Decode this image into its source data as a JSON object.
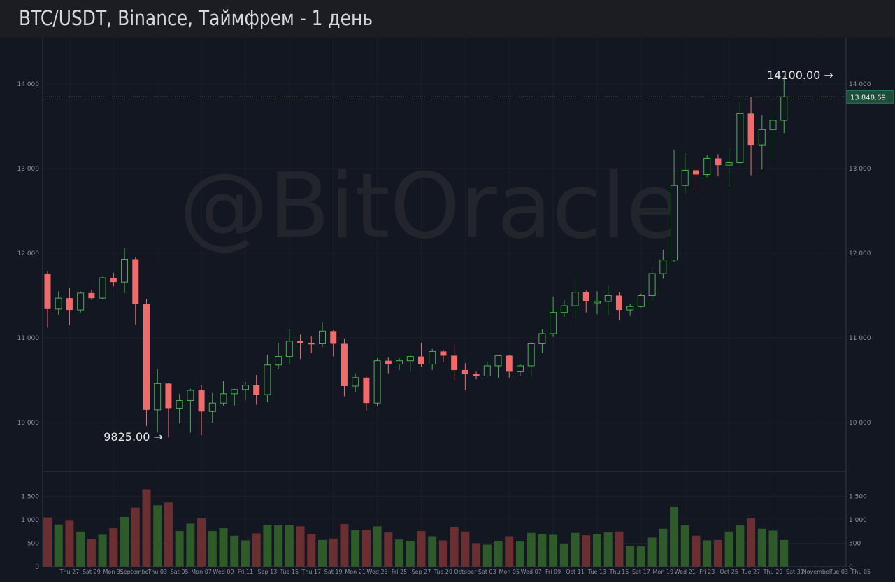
{
  "header": {
    "title": "BTC/USDT, Binance, Таймфрем - 1 день"
  },
  "watermark": "@BitOracle",
  "price_axis": {
    "ticks": [
      "10 000",
      "11 000",
      "12 000",
      "13 000",
      "14 000"
    ]
  },
  "volume_axis": {
    "ticks": [
      "0",
      "500",
      "1 000",
      "1 500"
    ]
  },
  "last_price": {
    "value": 13848.69,
    "label": "13 848.69",
    "color": "#26a69a"
  },
  "annotations": [
    {
      "text": "14100.00 →",
      "x": "2020-11-05",
      "y": 14100
    },
    {
      "text": "9825.00 →",
      "x": "2020-09-05",
      "y": 9825
    }
  ],
  "colors": {
    "up": "#4caf50",
    "down": "#f06b6b",
    "vol_up": "#2f5a2a",
    "vol_down": "#6a2f31"
  },
  "chart_data": {
    "type": "candlestick",
    "x_tick_labels": [
      "Thu 27",
      "Sat 29",
      "Mon 31",
      "September",
      "Thu 03",
      "Sat 05",
      "Mon 07",
      "Wed 09",
      "Fri 11",
      "Sep 13",
      "Tue 15",
      "Thu 17",
      "Sat 19",
      "Mon 21",
      "Wed 23",
      "Fri 25",
      "Sep 27",
      "Tue 29",
      "October",
      "Sat 03",
      "Mon 05",
      "Wed 07",
      "Fri 09",
      "Oct 11",
      "Tue 13",
      "Thu 15",
      "Sat 17",
      "Mon 19",
      "Wed 21",
      "Fri 23",
      "Oct 25",
      "Tue 27",
      "Thu 29",
      "Sat 31",
      "November",
      "Tue 03",
      "Thu 05"
    ],
    "ylim": [
      9400,
      14400
    ],
    "volume_ylim": [
      0,
      1900
    ],
    "candles": [
      {
        "date": "2020-08-25",
        "o": 11760,
        "h": 11790,
        "l": 11120,
        "c": 11340,
        "v": 1050
      },
      {
        "date": "2020-08-26",
        "o": 11340,
        "h": 11550,
        "l": 11270,
        "c": 11470,
        "v": 900
      },
      {
        "date": "2020-08-27",
        "o": 11470,
        "h": 11590,
        "l": 11150,
        "c": 11330,
        "v": 980
      },
      {
        "date": "2020-08-28",
        "o": 11330,
        "h": 11550,
        "l": 11300,
        "c": 11530,
        "v": 750
      },
      {
        "date": "2020-08-29",
        "o": 11530,
        "h": 11570,
        "l": 11450,
        "c": 11470,
        "v": 590
      },
      {
        "date": "2020-08-30",
        "o": 11470,
        "h": 11720,
        "l": 11460,
        "c": 11710,
        "v": 680
      },
      {
        "date": "2020-08-31",
        "o": 11710,
        "h": 11770,
        "l": 11610,
        "c": 11660,
        "v": 820
      },
      {
        "date": "2020-09-01",
        "o": 11660,
        "h": 12060,
        "l": 11530,
        "c": 11930,
        "v": 1060
      },
      {
        "date": "2020-09-02",
        "o": 11930,
        "h": 11950,
        "l": 11160,
        "c": 11400,
        "v": 1260
      },
      {
        "date": "2020-09-03",
        "o": 11400,
        "h": 11460,
        "l": 9960,
        "c": 10150,
        "v": 1650
      },
      {
        "date": "2020-09-04",
        "o": 10150,
        "h": 10630,
        "l": 9880,
        "c": 10460,
        "v": 1310
      },
      {
        "date": "2020-09-05",
        "o": 10460,
        "h": 10470,
        "l": 9825,
        "c": 10170,
        "v": 1370
      },
      {
        "date": "2020-09-06",
        "o": 10170,
        "h": 10340,
        "l": 9990,
        "c": 10260,
        "v": 760
      },
      {
        "date": "2020-09-07",
        "o": 10260,
        "h": 10400,
        "l": 9880,
        "c": 10380,
        "v": 920
      },
      {
        "date": "2020-09-08",
        "o": 10380,
        "h": 10440,
        "l": 9850,
        "c": 10130,
        "v": 1030
      },
      {
        "date": "2020-09-09",
        "o": 10130,
        "h": 10350,
        "l": 10000,
        "c": 10230,
        "v": 760
      },
      {
        "date": "2020-09-10",
        "o": 10230,
        "h": 10490,
        "l": 10200,
        "c": 10340,
        "v": 820
      },
      {
        "date": "2020-09-11",
        "o": 10340,
        "h": 10400,
        "l": 10200,
        "c": 10390,
        "v": 660
      },
      {
        "date": "2020-09-12",
        "o": 10390,
        "h": 10480,
        "l": 10260,
        "c": 10440,
        "v": 560
      },
      {
        "date": "2020-09-13",
        "o": 10440,
        "h": 10560,
        "l": 10210,
        "c": 10330,
        "v": 710
      },
      {
        "date": "2020-09-14",
        "o": 10330,
        "h": 10800,
        "l": 10240,
        "c": 10680,
        "v": 890
      },
      {
        "date": "2020-09-15",
        "o": 10680,
        "h": 10940,
        "l": 10630,
        "c": 10780,
        "v": 880
      },
      {
        "date": "2020-09-16",
        "o": 10780,
        "h": 11100,
        "l": 10690,
        "c": 10960,
        "v": 890
      },
      {
        "date": "2020-09-17",
        "o": 10960,
        "h": 11040,
        "l": 10750,
        "c": 10940,
        "v": 860
      },
      {
        "date": "2020-09-18",
        "o": 10940,
        "h": 11020,
        "l": 10820,
        "c": 10930,
        "v": 690
      },
      {
        "date": "2020-09-19",
        "o": 10930,
        "h": 11180,
        "l": 10890,
        "c": 11080,
        "v": 570
      },
      {
        "date": "2020-09-20",
        "o": 11080,
        "h": 11090,
        "l": 10780,
        "c": 10930,
        "v": 600
      },
      {
        "date": "2020-09-21",
        "o": 10930,
        "h": 10990,
        "l": 10310,
        "c": 10430,
        "v": 910
      },
      {
        "date": "2020-09-22",
        "o": 10430,
        "h": 10580,
        "l": 10360,
        "c": 10530,
        "v": 780
      },
      {
        "date": "2020-09-23",
        "o": 10530,
        "h": 10540,
        "l": 10140,
        "c": 10230,
        "v": 790
      },
      {
        "date": "2020-09-24",
        "o": 10230,
        "h": 10760,
        "l": 10190,
        "c": 10730,
        "v": 860
      },
      {
        "date": "2020-09-25",
        "o": 10730,
        "h": 10770,
        "l": 10580,
        "c": 10690,
        "v": 730
      },
      {
        "date": "2020-09-26",
        "o": 10690,
        "h": 10760,
        "l": 10620,
        "c": 10730,
        "v": 580
      },
      {
        "date": "2020-09-27",
        "o": 10730,
        "h": 10800,
        "l": 10600,
        "c": 10780,
        "v": 550
      },
      {
        "date": "2020-09-28",
        "o": 10780,
        "h": 10940,
        "l": 10660,
        "c": 10690,
        "v": 760
      },
      {
        "date": "2020-09-29",
        "o": 10690,
        "h": 10870,
        "l": 10620,
        "c": 10840,
        "v": 650
      },
      {
        "date": "2020-09-30",
        "o": 10840,
        "h": 10860,
        "l": 10710,
        "c": 10790,
        "v": 560
      },
      {
        "date": "2020-10-01",
        "o": 10790,
        "h": 10920,
        "l": 10500,
        "c": 10620,
        "v": 850
      },
      {
        "date": "2020-10-02",
        "o": 10620,
        "h": 10700,
        "l": 10380,
        "c": 10570,
        "v": 750
      },
      {
        "date": "2020-10-03",
        "o": 10570,
        "h": 10600,
        "l": 10510,
        "c": 10550,
        "v": 500
      },
      {
        "date": "2020-10-04",
        "o": 10550,
        "h": 10720,
        "l": 10540,
        "c": 10670,
        "v": 470
      },
      {
        "date": "2020-10-05",
        "o": 10670,
        "h": 10800,
        "l": 10530,
        "c": 10790,
        "v": 550
      },
      {
        "date": "2020-10-06",
        "o": 10790,
        "h": 10800,
        "l": 10530,
        "c": 10600,
        "v": 650
      },
      {
        "date": "2020-10-07",
        "o": 10600,
        "h": 10690,
        "l": 10550,
        "c": 10670,
        "v": 550
      },
      {
        "date": "2020-10-08",
        "o": 10670,
        "h": 10950,
        "l": 10540,
        "c": 10930,
        "v": 720
      },
      {
        "date": "2020-10-09",
        "o": 10930,
        "h": 11100,
        "l": 10820,
        "c": 11050,
        "v": 700
      },
      {
        "date": "2020-10-10",
        "o": 11050,
        "h": 11490,
        "l": 11010,
        "c": 11300,
        "v": 680
      },
      {
        "date": "2020-10-11",
        "o": 11300,
        "h": 11450,
        "l": 11250,
        "c": 11380,
        "v": 490
      },
      {
        "date": "2020-10-12",
        "o": 11380,
        "h": 11720,
        "l": 11200,
        "c": 11540,
        "v": 720
      },
      {
        "date": "2020-10-13",
        "o": 11540,
        "h": 11560,
        "l": 11300,
        "c": 11430,
        "v": 670
      },
      {
        "date": "2020-10-14",
        "o": 11430,
        "h": 11550,
        "l": 11280,
        "c": 11430,
        "v": 690
      },
      {
        "date": "2020-10-15",
        "o": 11430,
        "h": 11620,
        "l": 11270,
        "c": 11500,
        "v": 730
      },
      {
        "date": "2020-10-16",
        "o": 11500,
        "h": 11540,
        "l": 11210,
        "c": 11330,
        "v": 750
      },
      {
        "date": "2020-10-17",
        "o": 11330,
        "h": 11400,
        "l": 11260,
        "c": 11370,
        "v": 440
      },
      {
        "date": "2020-10-18",
        "o": 11370,
        "h": 11520,
        "l": 11360,
        "c": 11500,
        "v": 430
      },
      {
        "date": "2020-10-19",
        "o": 11500,
        "h": 11840,
        "l": 11440,
        "c": 11760,
        "v": 620
      },
      {
        "date": "2020-10-20",
        "o": 11760,
        "h": 12040,
        "l": 11700,
        "c": 11920,
        "v": 810
      },
      {
        "date": "2020-10-21",
        "o": 11920,
        "h": 13220,
        "l": 11900,
        "c": 12800,
        "v": 1270
      },
      {
        "date": "2020-10-22",
        "o": 12800,
        "h": 13180,
        "l": 12710,
        "c": 12980,
        "v": 880
      },
      {
        "date": "2020-10-23",
        "o": 12980,
        "h": 13030,
        "l": 12740,
        "c": 12930,
        "v": 660
      },
      {
        "date": "2020-10-24",
        "o": 12930,
        "h": 13160,
        "l": 12900,
        "c": 13120,
        "v": 560
      },
      {
        "date": "2020-10-25",
        "o": 13120,
        "h": 13170,
        "l": 12910,
        "c": 13040,
        "v": 570
      },
      {
        "date": "2020-10-26",
        "o": 13040,
        "h": 13250,
        "l": 12780,
        "c": 13070,
        "v": 750
      },
      {
        "date": "2020-10-27",
        "o": 13070,
        "h": 13780,
        "l": 13050,
        "c": 13650,
        "v": 880
      },
      {
        "date": "2020-10-28",
        "o": 13650,
        "h": 13850,
        "l": 12920,
        "c": 13280,
        "v": 1030
      },
      {
        "date": "2020-10-29",
        "o": 13280,
        "h": 13630,
        "l": 12990,
        "c": 13460,
        "v": 810
      },
      {
        "date": "2020-10-30",
        "o": 13460,
        "h": 13670,
        "l": 13130,
        "c": 13570,
        "v": 770
      },
      {
        "date": "2020-10-31",
        "o": 13570,
        "h": 14100,
        "l": 13420,
        "c": 13848.69,
        "v": 570
      }
    ]
  }
}
